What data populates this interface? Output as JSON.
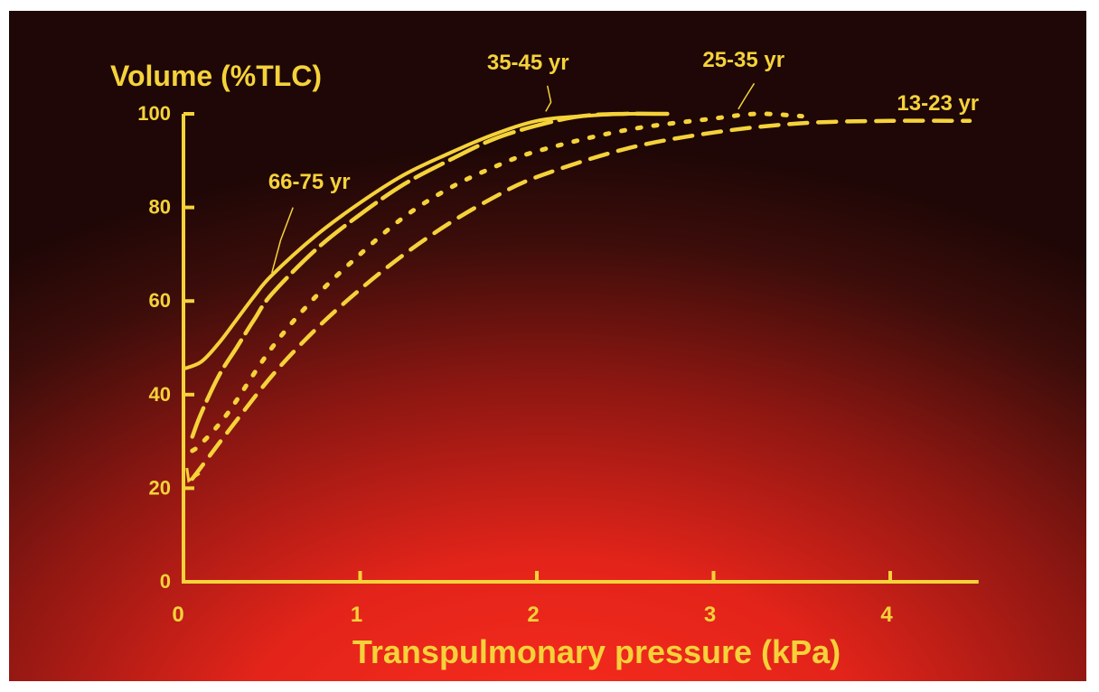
{
  "colors": {
    "accent": "#f5d23a",
    "bg_top": "#1e0706",
    "bg_mid": "#7a1410",
    "bg_bottom": "#e3241a"
  },
  "chart_data": {
    "type": "line",
    "title": "",
    "xlabel": "Transpulmonary pressure (kPa)",
    "ylabel": "Volume (%TLC)",
    "xlim": [
      0,
      4.5
    ],
    "ylim": [
      0,
      100
    ],
    "xticks": [
      0,
      1,
      2,
      3,
      4
    ],
    "yticks": [
      0,
      20,
      40,
      60,
      80,
      100
    ],
    "grid": false,
    "series": [
      {
        "name": "66-75 yr",
        "dash": "solid",
        "points": [
          [
            0,
            45.5
          ],
          [
            0.1,
            47
          ],
          [
            0.2,
            51
          ],
          [
            0.3,
            56
          ],
          [
            0.4,
            61
          ],
          [
            0.5,
            65.5
          ],
          [
            0.75,
            74
          ],
          [
            1.0,
            81
          ],
          [
            1.25,
            87
          ],
          [
            1.5,
            91.5
          ],
          [
            1.75,
            95.5
          ],
          [
            2.0,
            98.5
          ],
          [
            2.25,
            99.5
          ],
          [
            2.5,
            100
          ],
          [
            2.7,
            100
          ]
        ]
      },
      {
        "name": "35-45 yr",
        "dash": "long-dash",
        "points": [
          [
            0.05,
            31
          ],
          [
            0.1,
            36
          ],
          [
            0.2,
            44
          ],
          [
            0.3,
            50
          ],
          [
            0.4,
            56
          ],
          [
            0.5,
            61.5
          ],
          [
            0.75,
            71
          ],
          [
            1.0,
            78.5
          ],
          [
            1.25,
            85
          ],
          [
            1.5,
            90
          ],
          [
            1.75,
            94.5
          ],
          [
            2.0,
            97.5
          ],
          [
            2.25,
            99.5
          ],
          [
            2.5,
            100
          ],
          [
            2.75,
            100
          ]
        ]
      },
      {
        "name": "25-35 yr",
        "dash": "dotted",
        "points": [
          [
            0.05,
            28
          ],
          [
            0.1,
            29.5
          ],
          [
            0.25,
            36
          ],
          [
            0.5,
            50
          ],
          [
            0.75,
            61
          ],
          [
            1.0,
            70
          ],
          [
            1.25,
            78
          ],
          [
            1.5,
            84
          ],
          [
            1.75,
            88.5
          ],
          [
            2.0,
            92
          ],
          [
            2.5,
            96.5
          ],
          [
            3.0,
            99
          ],
          [
            3.25,
            100
          ],
          [
            3.5,
            99.5
          ]
        ]
      },
      {
        "name": "13-23 yr",
        "dash": "dashed",
        "points": [
          [
            0.05,
            22
          ],
          [
            0.15,
            27
          ],
          [
            0.25,
            32
          ],
          [
            0.5,
            44
          ],
          [
            0.75,
            54
          ],
          [
            1.0,
            62.5
          ],
          [
            1.25,
            70
          ],
          [
            1.5,
            76.5
          ],
          [
            1.75,
            82
          ],
          [
            2.0,
            86.5
          ],
          [
            2.5,
            92.5
          ],
          [
            3.0,
            96
          ],
          [
            3.5,
            98
          ],
          [
            4.0,
            98.5
          ],
          [
            4.45,
            98.5
          ]
        ]
      }
    ],
    "annotations": [
      {
        "text": "66-75 yr",
        "series": "66-75 yr"
      },
      {
        "text": "35-45 yr",
        "series": "35-45 yr"
      },
      {
        "text": "25-35 yr",
        "series": "25-35 yr"
      },
      {
        "text": "13-23 yr",
        "series": "13-23 yr"
      }
    ]
  }
}
